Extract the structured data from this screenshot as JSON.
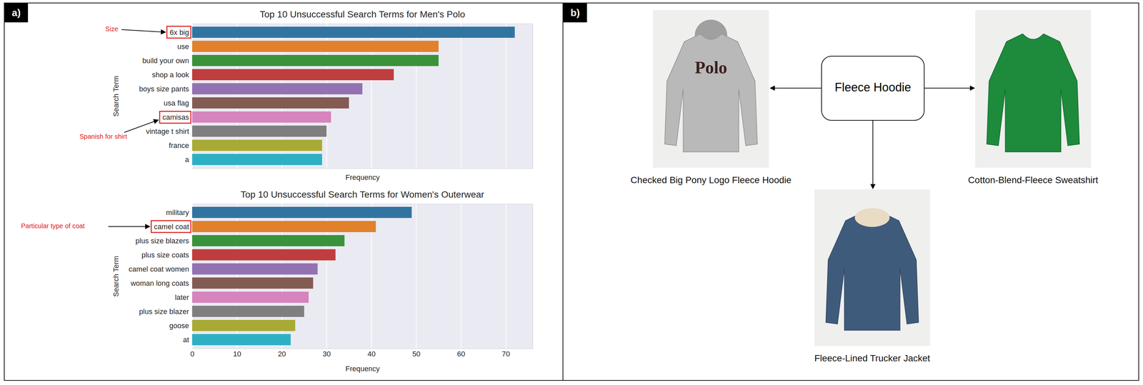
{
  "panel_labels": [
    "a)",
    "b)"
  ],
  "chart_data": [
    {
      "type": "bar",
      "orientation": "horizontal",
      "title": "Top 10 Unsuccessful Search Terms for Men's Polo",
      "x_label": "Frequency",
      "y_label": "Search Term",
      "categories": [
        "6x big",
        "use",
        "build your own",
        "shop a look",
        "boys size pants",
        "usa flag",
        "camisas",
        "vintage t shirt",
        "france",
        "a"
      ],
      "values": [
        72,
        55,
        55,
        45,
        38,
        35,
        31,
        30,
        29,
        29
      ],
      "colors": [
        "#3274a1",
        "#e1812c",
        "#3a923a",
        "#c03d3e",
        "#9372b2",
        "#845b53",
        "#d684bd",
        "#7f7f7f",
        "#a9aa35",
        "#2eb0c4"
      ],
      "xlim": [
        0,
        76
      ],
      "xticks": [
        0,
        10,
        20,
        30,
        40,
        50,
        60,
        70
      ],
      "grid": true,
      "tick_labels": "y",
      "annotations": [
        {
          "text": "Size",
          "target": "6x big"
        },
        {
          "text": "Spanish for shirt",
          "target": "camisas"
        }
      ]
    },
    {
      "type": "bar",
      "orientation": "horizontal",
      "title": "Top 10 Unsuccessful Search Terms for Women's Outerwear",
      "x_label": "Frequency",
      "y_label": "Search Term",
      "categories": [
        "military",
        "camel coat",
        "plus size blazers",
        "plus size coats",
        "camel coat women",
        "woman long coats",
        "later",
        "plus size blazer",
        "goose",
        "at"
      ],
      "values": [
        49,
        41,
        34,
        32,
        28,
        27,
        26,
        25,
        23,
        22
      ],
      "colors": [
        "#3274a1",
        "#e1812c",
        "#3a923a",
        "#c03d3e",
        "#9372b2",
        "#845b53",
        "#d684bd",
        "#7f7f7f",
        "#a9aa35",
        "#2eb0c4"
      ],
      "xlim": [
        0,
        76
      ],
      "xticks": [
        0,
        10,
        20,
        30,
        40,
        50,
        60,
        70
      ],
      "grid": true,
      "annotations": [
        {
          "text": "Particular type of coat",
          "target": "camel coat"
        }
      ]
    }
  ],
  "diagram": {
    "center": "Fleece Hoodie",
    "nodes": [
      {
        "label": "Checked Big Pony Logo Fleece Hoodie",
        "image_text": "Polo"
      },
      {
        "label": "Cotton-Blend-Fleece Sweatshirt"
      },
      {
        "label": "Fleece-Lined Trucker Jacket"
      }
    ]
  }
}
